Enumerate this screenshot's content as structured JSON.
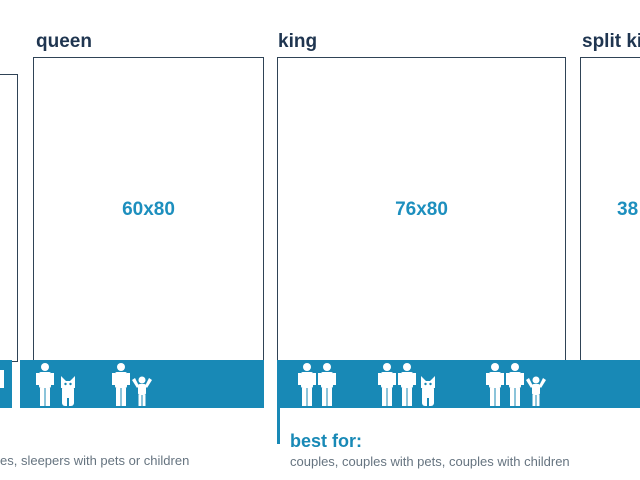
{
  "colors": {
    "title": "#1f3550",
    "accent": "#1889b6",
    "dimension": "#1d8fbe",
    "outline": "#2f4356",
    "body_text": "#667480"
  },
  "sizes": [
    {
      "id": "full-partial",
      "title": "",
      "dimensions": "",
      "best_for_title": "",
      "best_for_text": "es, sleepers with pets or children",
      "icons": [
        "adult-icon"
      ]
    },
    {
      "id": "queen",
      "title": "queen",
      "dimensions": "60x80",
      "icons": [
        "adult-icon",
        "dog-icon",
        "adult-icon",
        "child-icon"
      ]
    },
    {
      "id": "king",
      "title": "king",
      "dimensions": "76x80",
      "best_for_title": "best for:",
      "best_for_text": "couples, couples with pets, couples with children",
      "icons": [
        "adult-icon",
        "adult-icon",
        "adult-icon",
        "adult-icon",
        "dog-icon",
        "adult-icon",
        "adult-icon",
        "child-icon"
      ]
    },
    {
      "id": "split-king",
      "title": "split ki",
      "dimensions": "38",
      "icons": []
    }
  ]
}
